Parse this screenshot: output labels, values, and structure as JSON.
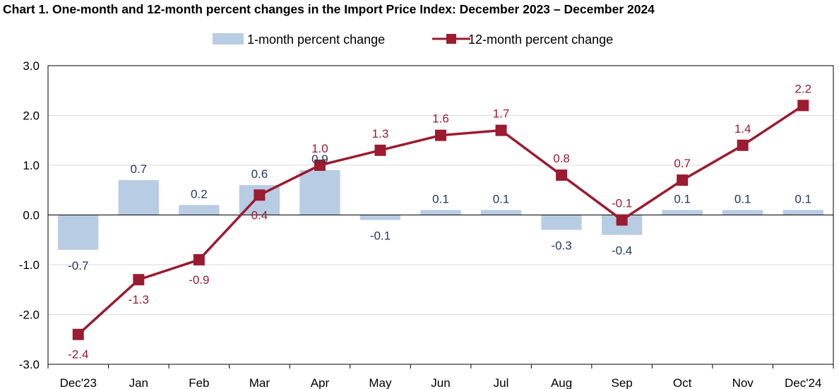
{
  "chart_data": {
    "type": "bar",
    "title": "Chart 1. One-month and 12-month percent changes in the Import Price Index: December 2023 – December 2024",
    "categories": [
      "Dec'23",
      "Jan",
      "Feb",
      "Mar",
      "Apr",
      "May",
      "Jun",
      "Jul",
      "Aug",
      "Sep",
      "Oct",
      "Nov",
      "Dec'24"
    ],
    "series": [
      {
        "name": "1-month percent change",
        "type": "bar",
        "color": "#b8cce4",
        "values": [
          -0.7,
          0.7,
          0.2,
          0.6,
          0.9,
          -0.1,
          0.1,
          0.1,
          -0.3,
          -0.4,
          0.1,
          0.1,
          0.1
        ],
        "labels": [
          "-0.7",
          "0.7",
          "0.2",
          "0.6",
          "0.9",
          "-0.1",
          "0.1",
          "0.1",
          "-0.3",
          "-0.4",
          "0.1",
          "0.1",
          "0.1"
        ]
      },
      {
        "name": "12-month percent change",
        "type": "line",
        "color": "#9b1b30",
        "values": [
          -2.4,
          -1.3,
          -0.9,
          0.4,
          1.0,
          1.3,
          1.6,
          1.7,
          0.8,
          -0.1,
          0.7,
          1.4,
          2.2
        ],
        "labels": [
          "-2.4",
          "-1.3",
          "-0.9",
          "0.4",
          "1.0",
          "1.3",
          "1.6",
          "1.7",
          "0.8",
          "-0.1",
          "0.7",
          "1.4",
          "2.2"
        ]
      }
    ],
    "ylim": [
      -3.0,
      3.0
    ],
    "yticks": [
      "3.0",
      "2.0",
      "1.0",
      "0.0",
      "-1.0",
      "-2.0",
      "-3.0"
    ],
    "ytick_values": [
      3,
      2,
      1,
      0,
      -1,
      -2,
      -3
    ],
    "grid": true,
    "legend": "top-center"
  }
}
